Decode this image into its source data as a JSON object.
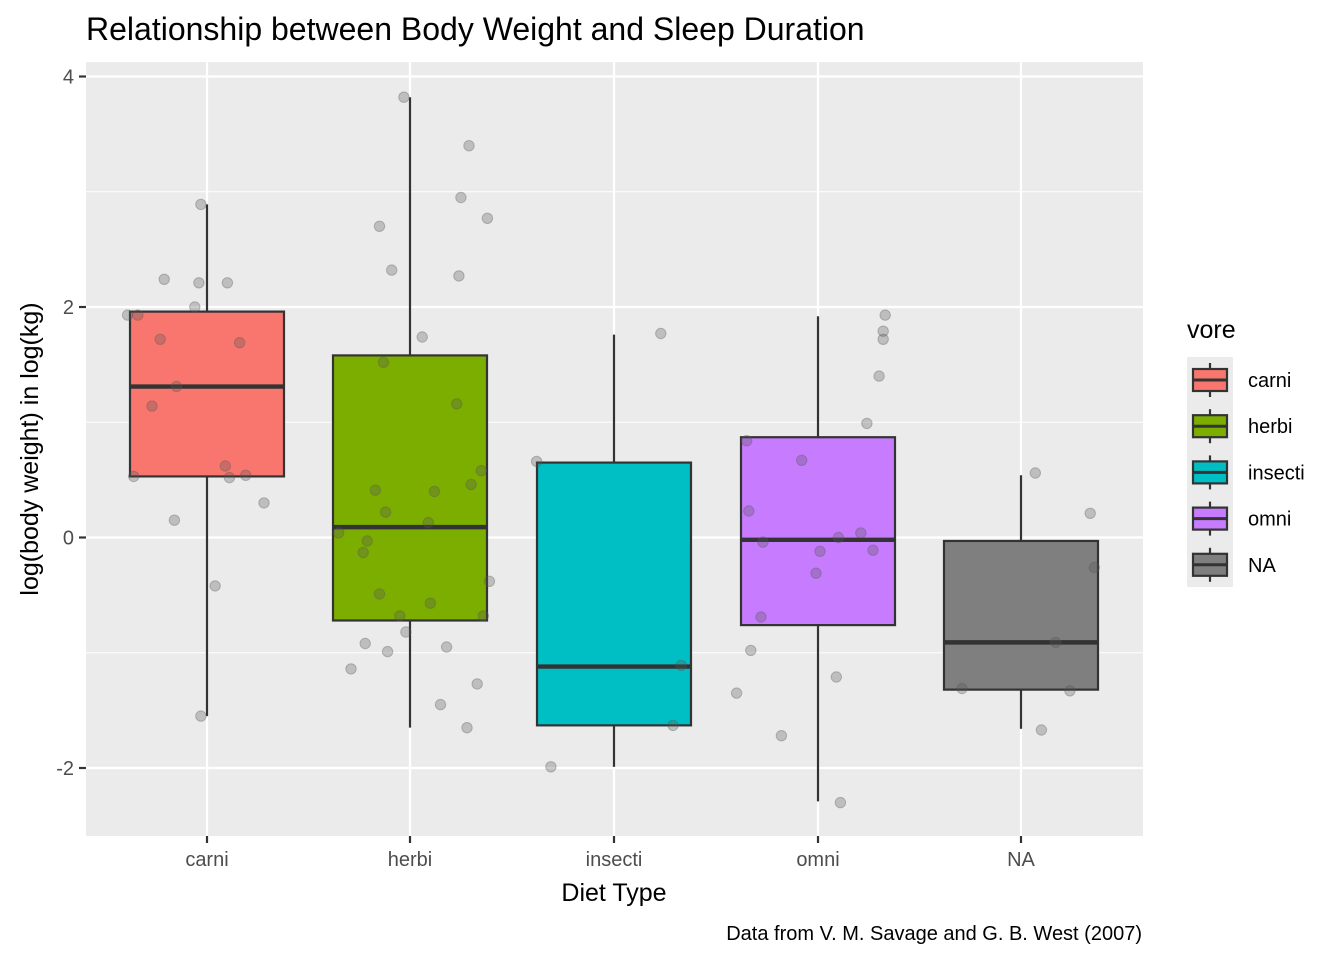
{
  "chart_data": {
    "type": "boxplot",
    "title": "Relationship between Body Weight and Sleep Duration",
    "xlabel": "Diet Type",
    "ylabel": "log(body weight) in log(kg)",
    "caption": "Data from V. M. Savage and G. B. West (2007)",
    "ylim": [
      -2.6,
      4.06
    ],
    "yticks": [
      -2,
      0,
      2,
      4
    ],
    "ytick_labels": [
      "-2",
      "0",
      "2",
      "4"
    ],
    "categories": [
      "carni",
      "herbi",
      "insecti",
      "omni",
      "NA"
    ],
    "legend": {
      "title": "vore",
      "position": "right",
      "entries": [
        "carni",
        "herbi",
        "insecti",
        "omni",
        "NA"
      ]
    },
    "colors": {
      "panel": "#ebebeb",
      "grid": "#ffffff",
      "box_line": "#333333",
      "point": "#999999",
      "fills": [
        "#f8766d",
        "#7cae00",
        "#00bfc4",
        "#c77cff",
        "#7f7f7f"
      ]
    },
    "boxes": [
      {
        "category": "carni",
        "ymin": -1.55,
        "q1": 0.53,
        "median": 1.31,
        "q3": 1.96,
        "ymax": 2.89
      },
      {
        "category": "herbi",
        "ymin": -1.65,
        "q1": -0.72,
        "median": 0.09,
        "q3": 1.58,
        "ymax": 3.82
      },
      {
        "category": "insecti",
        "ymin": -1.99,
        "q1": -1.63,
        "median": -1.12,
        "q3": 0.65,
        "ymax": 1.76
      },
      {
        "category": "omni",
        "ymin": -2.29,
        "q1": -0.76,
        "median": -0.02,
        "q3": 0.87,
        "ymax": 1.92
      },
      {
        "category": "NA",
        "ymin": -1.66,
        "q1": -1.32,
        "median": -0.91,
        "q3": -0.03,
        "ymax": 0.54
      }
    ],
    "points": [
      {
        "category": "carni",
        "x_offset": -0.39,
        "y": 1.93
      },
      {
        "category": "carni",
        "x_offset": -0.34,
        "y": 1.93
      },
      {
        "category": "carni",
        "x_offset": -0.23,
        "y": 1.72
      },
      {
        "category": "carni",
        "x_offset": -0.21,
        "y": 2.24
      },
      {
        "category": "carni",
        "x_offset": -0.15,
        "y": 1.31
      },
      {
        "category": "carni",
        "x_offset": -0.27,
        "y": 1.14
      },
      {
        "category": "carni",
        "x_offset": -0.36,
        "y": 0.53
      },
      {
        "category": "carni",
        "x_offset": -0.16,
        "y": 0.15
      },
      {
        "category": "carni",
        "x_offset": -0.03,
        "y": 2.89
      },
      {
        "category": "carni",
        "x_offset": -0.06,
        "y": 2.0
      },
      {
        "category": "carni",
        "x_offset": -0.04,
        "y": 2.21
      },
      {
        "category": "carni",
        "x_offset": 0.1,
        "y": 2.21
      },
      {
        "category": "carni",
        "x_offset": 0.16,
        "y": 1.69
      },
      {
        "category": "carni",
        "x_offset": 0.09,
        "y": 0.62
      },
      {
        "category": "carni",
        "x_offset": 0.11,
        "y": 0.52
      },
      {
        "category": "carni",
        "x_offset": 0.19,
        "y": 0.54
      },
      {
        "category": "carni",
        "x_offset": 0.28,
        "y": 0.3
      },
      {
        "category": "carni",
        "x_offset": 0.04,
        "y": -0.42
      },
      {
        "category": "carni",
        "x_offset": -0.03,
        "y": -1.55
      },
      {
        "category": "herbi",
        "x_offset": -0.03,
        "y": 3.82
      },
      {
        "category": "herbi",
        "x_offset": 0.29,
        "y": 3.4
      },
      {
        "category": "herbi",
        "x_offset": 0.25,
        "y": 2.95
      },
      {
        "category": "herbi",
        "x_offset": 0.38,
        "y": 2.77
      },
      {
        "category": "herbi",
        "x_offset": -0.15,
        "y": 2.7
      },
      {
        "category": "herbi",
        "x_offset": -0.09,
        "y": 2.32
      },
      {
        "category": "herbi",
        "x_offset": 0.24,
        "y": 2.27
      },
      {
        "category": "herbi",
        "x_offset": 0.06,
        "y": 1.74
      },
      {
        "category": "herbi",
        "x_offset": -0.13,
        "y": 1.52
      },
      {
        "category": "herbi",
        "x_offset": 0.23,
        "y": 1.16
      },
      {
        "category": "herbi",
        "x_offset": 0.35,
        "y": 0.58
      },
      {
        "category": "herbi",
        "x_offset": 0.3,
        "y": 0.46
      },
      {
        "category": "herbi",
        "x_offset": -0.17,
        "y": 0.41
      },
      {
        "category": "herbi",
        "x_offset": 0.12,
        "y": 0.4
      },
      {
        "category": "herbi",
        "x_offset": -0.12,
        "y": 0.22
      },
      {
        "category": "herbi",
        "x_offset": 0.09,
        "y": 0.13
      },
      {
        "category": "herbi",
        "x_offset": -0.35,
        "y": 0.04
      },
      {
        "category": "herbi",
        "x_offset": -0.21,
        "y": -0.03
      },
      {
        "category": "herbi",
        "x_offset": -0.23,
        "y": -0.13
      },
      {
        "category": "herbi",
        "x_offset": 0.39,
        "y": -0.38
      },
      {
        "category": "herbi",
        "x_offset": -0.15,
        "y": -0.49
      },
      {
        "category": "herbi",
        "x_offset": 0.1,
        "y": -0.57
      },
      {
        "category": "herbi",
        "x_offset": -0.05,
        "y": -0.68
      },
      {
        "category": "herbi",
        "x_offset": 0.36,
        "y": -0.68
      },
      {
        "category": "herbi",
        "x_offset": -0.02,
        "y": -0.82
      },
      {
        "category": "herbi",
        "x_offset": -0.22,
        "y": -0.92
      },
      {
        "category": "herbi",
        "x_offset": 0.18,
        "y": -0.95
      },
      {
        "category": "herbi",
        "x_offset": -0.11,
        "y": -0.99
      },
      {
        "category": "herbi",
        "x_offset": -0.29,
        "y": -1.14
      },
      {
        "category": "herbi",
        "x_offset": 0.33,
        "y": -1.27
      },
      {
        "category": "herbi",
        "x_offset": 0.15,
        "y": -1.45
      },
      {
        "category": "herbi",
        "x_offset": 0.28,
        "y": -1.65
      },
      {
        "category": "insecti",
        "x_offset": 0.23,
        "y": 1.77
      },
      {
        "category": "insecti",
        "x_offset": -0.38,
        "y": 0.66
      },
      {
        "category": "insecti",
        "x_offset": 0.33,
        "y": -1.11
      },
      {
        "category": "insecti",
        "x_offset": 0.29,
        "y": -1.63
      },
      {
        "category": "insecti",
        "x_offset": -0.31,
        "y": -1.99
      },
      {
        "category": "omni",
        "x_offset": 0.33,
        "y": 1.93
      },
      {
        "category": "omni",
        "x_offset": 0.32,
        "y": 1.79
      },
      {
        "category": "omni",
        "x_offset": 0.32,
        "y": 1.72
      },
      {
        "category": "omni",
        "x_offset": 0.3,
        "y": 1.4
      },
      {
        "category": "omni",
        "x_offset": 0.24,
        "y": 0.99
      },
      {
        "category": "omni",
        "x_offset": -0.35,
        "y": 0.84
      },
      {
        "category": "omni",
        "x_offset": -0.08,
        "y": 0.67
      },
      {
        "category": "omni",
        "x_offset": -0.34,
        "y": 0.23
      },
      {
        "category": "omni",
        "x_offset": 0.21,
        "y": 0.04
      },
      {
        "category": "omni",
        "x_offset": 0.1,
        "y": 0.0
      },
      {
        "category": "omni",
        "x_offset": -0.27,
        "y": -0.04
      },
      {
        "category": "omni",
        "x_offset": 0.01,
        "y": -0.12
      },
      {
        "category": "omni",
        "x_offset": 0.27,
        "y": -0.11
      },
      {
        "category": "omni",
        "x_offset": -0.01,
        "y": -0.31
      },
      {
        "category": "omni",
        "x_offset": -0.28,
        "y": -0.69
      },
      {
        "category": "omni",
        "x_offset": -0.33,
        "y": -0.98
      },
      {
        "category": "omni",
        "x_offset": 0.09,
        "y": -1.21
      },
      {
        "category": "omni",
        "x_offset": -0.4,
        "y": -1.35
      },
      {
        "category": "omni",
        "x_offset": -0.18,
        "y": -1.72
      },
      {
        "category": "omni",
        "x_offset": 0.11,
        "y": -2.3
      },
      {
        "category": "NA",
        "x_offset": 0.07,
        "y": 0.56
      },
      {
        "category": "NA",
        "x_offset": 0.34,
        "y": 0.21
      },
      {
        "category": "NA",
        "x_offset": 0.36,
        "y": -0.26
      },
      {
        "category": "NA",
        "x_offset": 0.17,
        "y": -0.91
      },
      {
        "category": "NA",
        "x_offset": -0.29,
        "y": -1.31
      },
      {
        "category": "NA",
        "x_offset": 0.24,
        "y": -1.33
      },
      {
        "category": "NA",
        "x_offset": 0.1,
        "y": -1.67
      }
    ]
  }
}
